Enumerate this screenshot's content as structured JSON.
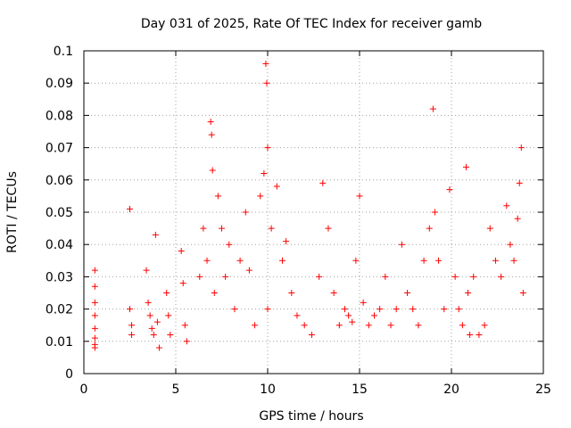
{
  "chart_data": {
    "type": "scatter",
    "title": "Day 031 of 2025, Rate Of TEC Index for receiver gamb",
    "xlabel": "GPS time / hours",
    "ylabel": "ROTI / TECUs",
    "xlim": [
      0,
      25
    ],
    "ylim": [
      0,
      0.1
    ],
    "xticks": [
      "0",
      "5",
      "10",
      "15",
      "20",
      "25"
    ],
    "yticks": [
      "0",
      "0.01",
      "0.02",
      "0.03",
      "0.04",
      "0.05",
      "0.06",
      "0.07",
      "0.08",
      "0.09",
      "0.1"
    ],
    "grid": true,
    "legend": "none",
    "marker": "plus",
    "color": "#ff0000",
    "series": [
      {
        "x": [
          0.6,
          0.6,
          0.6,
          0.6,
          0.6,
          0.6,
          0.6,
          0.6,
          2.5,
          2.5,
          2.6,
          2.6,
          3.4,
          3.5,
          3.6,
          3.7,
          3.8,
          3.9,
          4.0,
          4.1,
          4.5,
          4.6,
          4.7,
          5.3,
          5.4,
          5.5,
          5.6,
          6.3,
          6.5,
          6.7,
          6.9,
          6.95,
          7.0,
          7.1,
          7.3,
          7.5,
          7.7,
          7.9,
          8.2,
          8.5,
          8.8,
          9.0,
          9.3,
          9.6,
          9.8,
          9.9,
          9.95,
          10.0,
          10.0,
          10.2,
          10.5,
          10.8,
          11.0,
          11.3,
          11.6,
          12.0,
          12.4,
          12.8,
          13.0,
          13.3,
          13.6,
          13.9,
          14.2,
          14.4,
          14.6,
          14.8,
          15.0,
          15.2,
          15.5,
          15.8,
          16.1,
          16.4,
          16.7,
          17.0,
          17.3,
          17.6,
          17.9,
          18.2,
          18.5,
          18.8,
          19.0,
          19.1,
          19.3,
          19.6,
          19.9,
          20.2,
          20.4,
          20.6,
          20.8,
          20.9,
          21.0,
          21.2,
          21.5,
          21.8,
          22.1,
          22.4,
          22.7,
          23.0,
          23.2,
          23.4,
          23.6,
          23.7,
          23.8,
          23.9
        ],
        "y": [
          0.032,
          0.027,
          0.022,
          0.018,
          0.014,
          0.011,
          0.009,
          0.008,
          0.051,
          0.02,
          0.015,
          0.012,
          0.032,
          0.022,
          0.018,
          0.014,
          0.012,
          0.043,
          0.016,
          0.008,
          0.025,
          0.018,
          0.012,
          0.038,
          0.028,
          0.015,
          0.01,
          0.03,
          0.045,
          0.035,
          0.078,
          0.074,
          0.063,
          0.025,
          0.055,
          0.045,
          0.03,
          0.04,
          0.02,
          0.035,
          0.05,
          0.032,
          0.015,
          0.055,
          0.062,
          0.096,
          0.09,
          0.07,
          0.02,
          0.045,
          0.058,
          0.035,
          0.041,
          0.025,
          0.018,
          0.015,
          0.012,
          0.03,
          0.059,
          0.045,
          0.025,
          0.015,
          0.02,
          0.018,
          0.016,
          0.035,
          0.055,
          0.022,
          0.015,
          0.018,
          0.02,
          0.03,
          0.015,
          0.02,
          0.04,
          0.025,
          0.02,
          0.015,
          0.035,
          0.045,
          0.082,
          0.05,
          0.035,
          0.02,
          0.057,
          0.03,
          0.02,
          0.015,
          0.064,
          0.025,
          0.012,
          0.03,
          0.012,
          0.015,
          0.045,
          0.035,
          0.03,
          0.052,
          0.04,
          0.035,
          0.048,
          0.059,
          0.07,
          0.025
        ]
      }
    ]
  }
}
